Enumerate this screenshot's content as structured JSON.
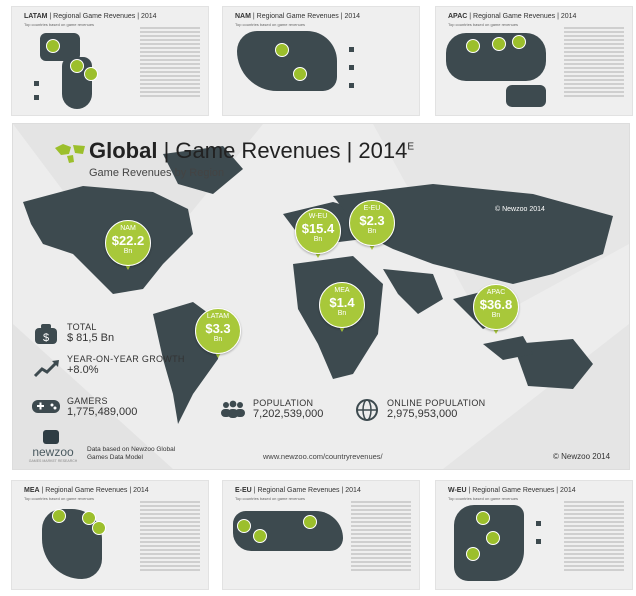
{
  "thumbnails": {
    "latam": {
      "title": "LATAM",
      "suffix": "| Regional Game Revenues | 2014",
      "sub": "Top countries based on game revenues"
    },
    "nam": {
      "title": "NAM",
      "suffix": "| Regional Game Revenues | 2014",
      "sub": "Top countries based on game revenues"
    },
    "apac": {
      "title": "APAC",
      "suffix": "| Regional Game Revenues | 2014",
      "sub": "Top countries based on game revenues"
    },
    "mea": {
      "title": "MEA",
      "suffix": "| Regional Game Revenues | 2014",
      "sub": "Top countries based on game revenues"
    },
    "eeu": {
      "title": "E-EU",
      "suffix": "| Regional Game Revenues | 2014",
      "sub": "Top countries based on game revenues"
    },
    "weu": {
      "title": "W-EU",
      "suffix": "| Regional Game Revenues | 2014",
      "sub": "Top countries based on game revenues"
    }
  },
  "main": {
    "title_bold": "Global",
    "title_rest": "| Game Revenues | 2014",
    "title_sup": "E",
    "subtitle": "Game Revenues by Region",
    "copyright_map": "© Newzoo 2014",
    "copyright_footer": "© Newzoo 2014",
    "url": "www.newzoo.com/countryrevenues/",
    "note": "Data based on Newzoo Global Games Data Model",
    "logo_word": "newzoo",
    "logo_tag": "GAMES MARKET RESEARCH",
    "stats": {
      "total_label": "TOTAL",
      "total_value": "$ 81,5 Bn",
      "growth_label": "YEAR-ON-YEAR GROWTH",
      "growth_value": "+8.0%",
      "gamers_label": "GAMERS",
      "gamers_value": "1,775,489,000",
      "population_label": "POPULATION",
      "population_value": "7,202,539,000",
      "online_label": "ONLINE POPULATION",
      "online_value": "2,975,953,000"
    },
    "pins": [
      {
        "region": "NAM",
        "value": "$22.2",
        "unit": "Bn"
      },
      {
        "region": "W-EU",
        "value": "$15.4",
        "unit": "Bn"
      },
      {
        "region": "E-EU",
        "value": "$2.3",
        "unit": "Bn"
      },
      {
        "region": "MEA",
        "value": "$1.4",
        "unit": "Bn"
      },
      {
        "region": "APAC",
        "value": "$36.8",
        "unit": "Bn"
      },
      {
        "region": "LATAM",
        "value": "$3.3",
        "unit": "Bn"
      }
    ],
    "colors": {
      "accent": "#a8c83a",
      "map": "#3d4a4f"
    }
  }
}
